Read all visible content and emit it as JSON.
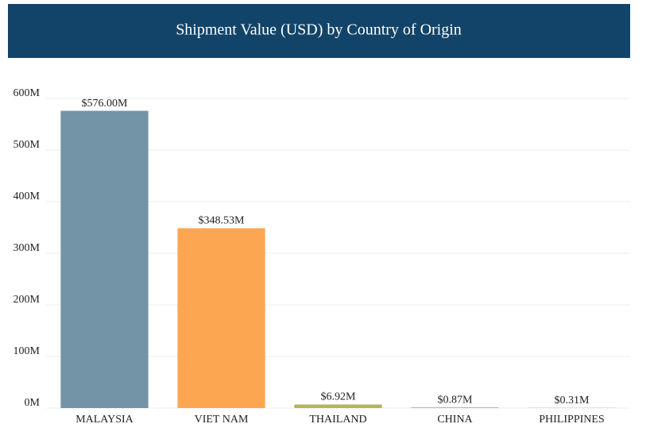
{
  "chart_data": {
    "type": "bar",
    "title": "Shipment Value (USD) by Country of Origin",
    "categories": [
      "MALAYSIA",
      "VIET NAM",
      "THAILAND",
      "CHINA",
      "PHILIPPINES"
    ],
    "values": [
      576,
      348.53,
      6.92,
      0.87,
      0.31
    ],
    "value_labels": [
      "$576.00M",
      "$348.53M",
      "$6.92M",
      "$0.87M",
      "$0.31M"
    ],
    "colors": [
      "#7393a7",
      "#fca652",
      "#b5b35c",
      "#8c6d9e",
      "#6aa88a"
    ],
    "ylim": [
      0,
      600
    ],
    "yticks": [
      {
        "value": 0,
        "label": "0M"
      },
      {
        "value": 100,
        "label": "100M"
      },
      {
        "value": 200,
        "label": "200M"
      },
      {
        "value": 300,
        "label": "300M"
      },
      {
        "value": 400,
        "label": "400M"
      },
      {
        "value": 500,
        "label": "500M"
      },
      {
        "value": 600,
        "label": "600M"
      }
    ],
    "grid": true
  }
}
